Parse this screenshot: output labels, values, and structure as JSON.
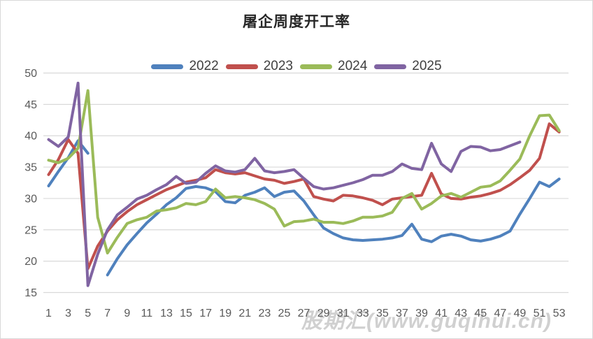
{
  "title": "屠企周度开工率",
  "watermark": {
    "text": "股期汇(www.guqihui.cn)"
  },
  "axes": {
    "y_ticks": [
      15,
      20,
      25,
      30,
      35,
      40,
      45,
      50
    ],
    "x_ticks": [
      1,
      3,
      5,
      7,
      9,
      11,
      13,
      15,
      17,
      19,
      21,
      23,
      25,
      27,
      29,
      31,
      33,
      35,
      37,
      39,
      41,
      43,
      45,
      47,
      49,
      51,
      53
    ],
    "tick_color": "#595959",
    "gridline_color": "#d9d9d9"
  },
  "chart_data": {
    "type": "line",
    "title": "屠企周度开工率",
    "xlabel": "",
    "ylabel": "",
    "ylim": [
      15,
      50
    ],
    "x_range": [
      1,
      53
    ],
    "grid": "horizontal",
    "legend_position": "top",
    "categories": [
      1,
      2,
      3,
      4,
      5,
      6,
      7,
      8,
      9,
      10,
      11,
      12,
      13,
      14,
      15,
      16,
      17,
      18,
      19,
      20,
      21,
      22,
      23,
      24,
      25,
      26,
      27,
      28,
      29,
      30,
      31,
      32,
      33,
      34,
      35,
      36,
      37,
      38,
      39,
      40,
      41,
      42,
      43,
      44,
      45,
      46,
      47,
      48,
      49,
      50,
      51,
      52,
      53
    ],
    "series": [
      {
        "name": "2022",
        "color": "#4F81BD",
        "values": [
          32.0,
          34.3,
          36.5,
          39.2,
          37.2,
          null,
          17.8,
          20.4,
          22.6,
          24.4,
          26.1,
          27.5,
          29.0,
          30.1,
          31.6,
          31.9,
          31.7,
          31.1,
          29.5,
          29.3,
          30.5,
          31.0,
          31.7,
          30.3,
          31.0,
          31.2,
          29.6,
          27.4,
          25.3,
          24.4,
          23.7,
          23.4,
          23.3,
          23.4,
          23.5,
          23.7,
          24.1,
          25.9,
          23.5,
          23.1,
          24.0,
          24.3,
          24.0,
          23.4,
          23.2,
          23.5,
          24.0,
          24.8,
          27.5,
          30.0,
          32.6,
          31.9,
          33.1
        ]
      },
      {
        "name": "2023",
        "color": "#C0504D",
        "values": [
          33.8,
          36.2,
          39.4,
          37.2,
          18.8,
          22.4,
          24.8,
          26.6,
          27.9,
          29.0,
          29.8,
          30.6,
          31.4,
          32.0,
          32.6,
          32.9,
          33.3,
          34.6,
          34.1,
          33.9,
          34.1,
          33.6,
          33.1,
          32.9,
          32.4,
          32.7,
          33.1,
          30.3,
          29.9,
          29.6,
          30.5,
          30.4,
          30.1,
          29.7,
          29.0,
          29.9,
          30.1,
          30.3,
          30.5,
          34.0,
          30.7,
          30.0,
          29.9,
          30.2,
          30.4,
          30.8,
          31.3,
          32.2,
          33.3,
          34.5,
          36.4,
          41.9,
          40.6
        ]
      },
      {
        "name": "2024",
        "color": "#9BBB59",
        "values": [
          36.1,
          35.7,
          36.4,
          38.0,
          47.2,
          27.0,
          21.3,
          23.8,
          26.0,
          26.6,
          27.0,
          28.0,
          28.2,
          28.5,
          29.2,
          29.0,
          29.5,
          31.5,
          30.1,
          30.3,
          30.1,
          29.8,
          29.2,
          28.3,
          25.6,
          26.3,
          26.4,
          26.7,
          26.2,
          26.2,
          26.0,
          26.4,
          27.0,
          27.0,
          27.2,
          27.8,
          30.0,
          30.8,
          28.3,
          29.2,
          30.4,
          30.8,
          30.2,
          31.0,
          31.8,
          32.0,
          32.8,
          34.5,
          36.3,
          40.0,
          43.2,
          43.3,
          40.8
        ]
      },
      {
        "name": "2025",
        "color": "#8064A2",
        "values": [
          39.4,
          38.3,
          39.8,
          48.4,
          16.1,
          21.1,
          25.0,
          27.4,
          28.6,
          29.9,
          30.5,
          31.4,
          32.2,
          33.5,
          32.4,
          32.6,
          34.0,
          35.2,
          34.4,
          34.2,
          34.6,
          36.4,
          34.4,
          34.1,
          34.3,
          34.6,
          33.2,
          31.9,
          31.5,
          31.7,
          32.1,
          32.5,
          33.0,
          33.7,
          33.7,
          34.3,
          35.5,
          34.8,
          34.6,
          38.8,
          35.5,
          34.3,
          37.5,
          38.3,
          38.2,
          37.6,
          37.8,
          38.4,
          39.0,
          null,
          null,
          null,
          null
        ]
      }
    ]
  }
}
